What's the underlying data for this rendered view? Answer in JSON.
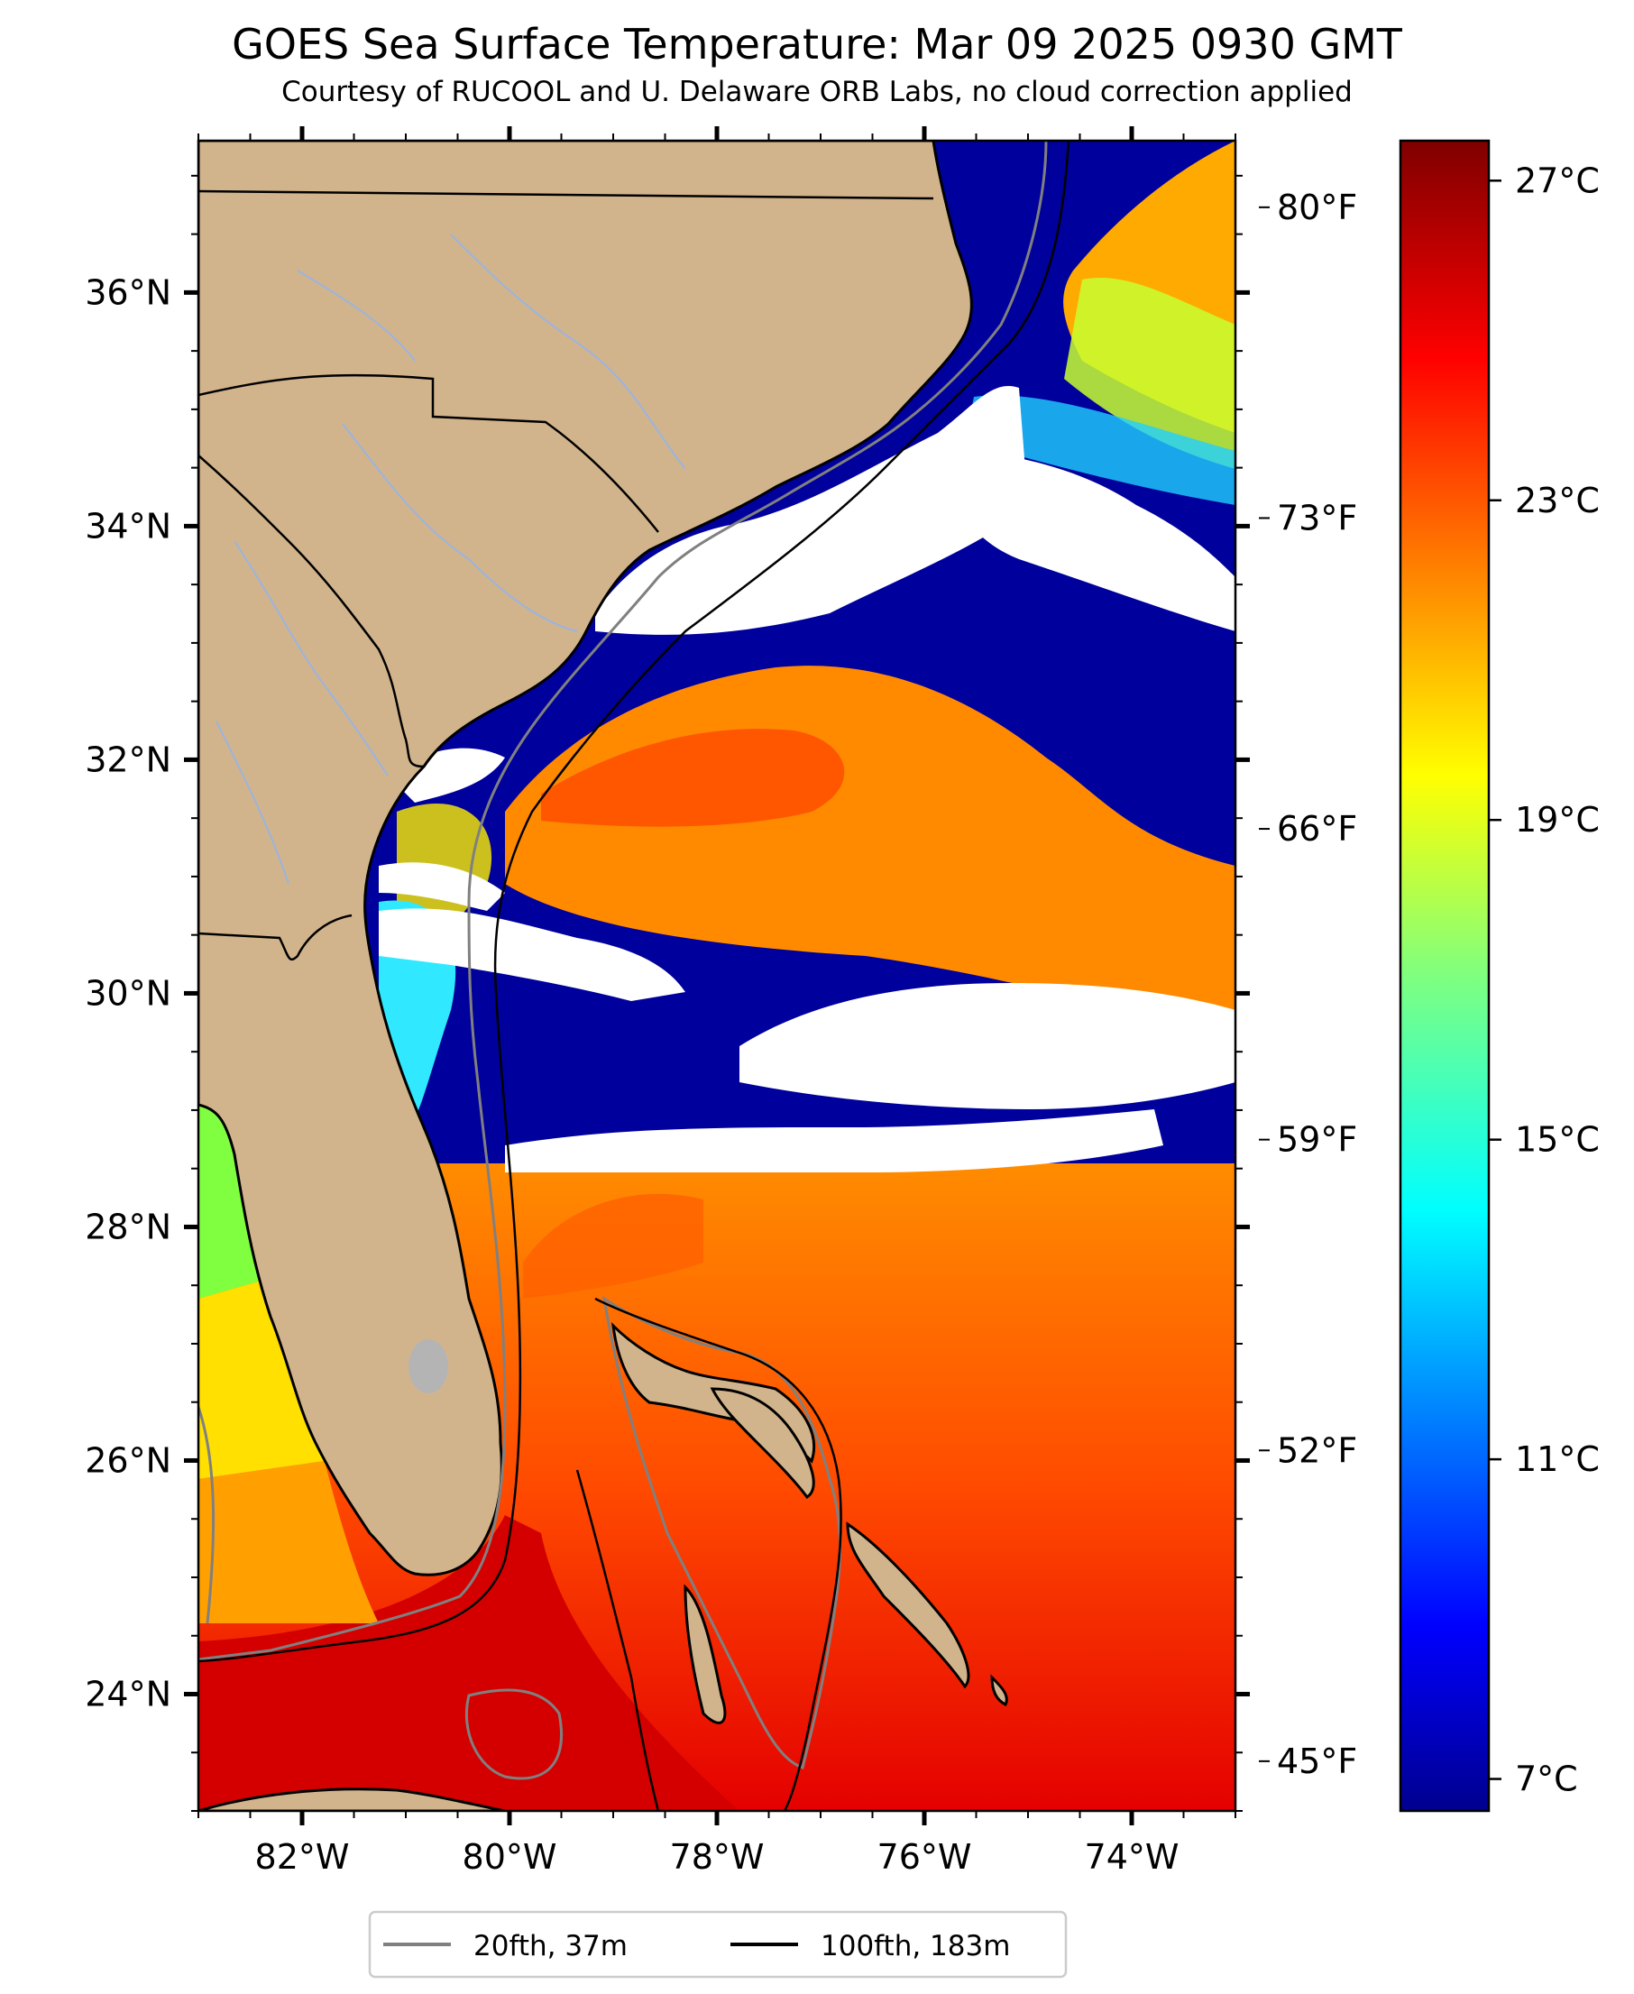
{
  "header": {
    "title": "GOES Sea Surface Temperature: Mar 09 2025 0930 GMT",
    "subtitle": "Courtesy of RUCOOL and U. Delaware ORB Labs, no cloud correction applied"
  },
  "map": {
    "lon_range": [
      -83,
      -73
    ],
    "lat_range": [
      23,
      37.3
    ],
    "lon_ticks": [
      {
        "value": -82,
        "label": "82°W"
      },
      {
        "value": -80,
        "label": "80°W"
      },
      {
        "value": -78,
        "label": "78°W"
      },
      {
        "value": -76,
        "label": "76°W"
      },
      {
        "value": -74,
        "label": "74°W"
      }
    ],
    "lat_ticks": [
      {
        "value": 24,
        "label": "24°N"
      },
      {
        "value": 26,
        "label": "26°N"
      },
      {
        "value": 28,
        "label": "28°N"
      },
      {
        "value": 30,
        "label": "30°N"
      },
      {
        "value": 32,
        "label": "32°N"
      },
      {
        "value": 34,
        "label": "34°N"
      },
      {
        "value": 36,
        "label": "36°N"
      }
    ],
    "fahrenheit_ticks": [
      {
        "value": 45,
        "label": "45°F"
      },
      {
        "value": 52,
        "label": "52°F"
      },
      {
        "value": 59,
        "label": "59°F"
      },
      {
        "value": 66,
        "label": "66°F"
      },
      {
        "value": 73,
        "label": "73°F"
      },
      {
        "value": 80,
        "label": "80°F"
      }
    ],
    "colors": {
      "land": "#d2b48c",
      "cloud": "#ffffff",
      "lake": "#b4b4b4"
    }
  },
  "colorbar": {
    "range_c": [
      6.6,
      27.5
    ],
    "ticks": [
      {
        "value": 7,
        "label": "7°C"
      },
      {
        "value": 11,
        "label": "11°C"
      },
      {
        "value": 15,
        "label": "15°C"
      },
      {
        "value": 19,
        "label": "19°C"
      },
      {
        "value": 23,
        "label": "23°C"
      },
      {
        "value": 27,
        "label": "27°C"
      }
    ],
    "colormap": "jet"
  },
  "legend": {
    "items": [
      {
        "label": "20fth, 37m",
        "color": "#808080"
      },
      {
        "label": "100fth, 183m",
        "color": "#000000"
      }
    ]
  }
}
